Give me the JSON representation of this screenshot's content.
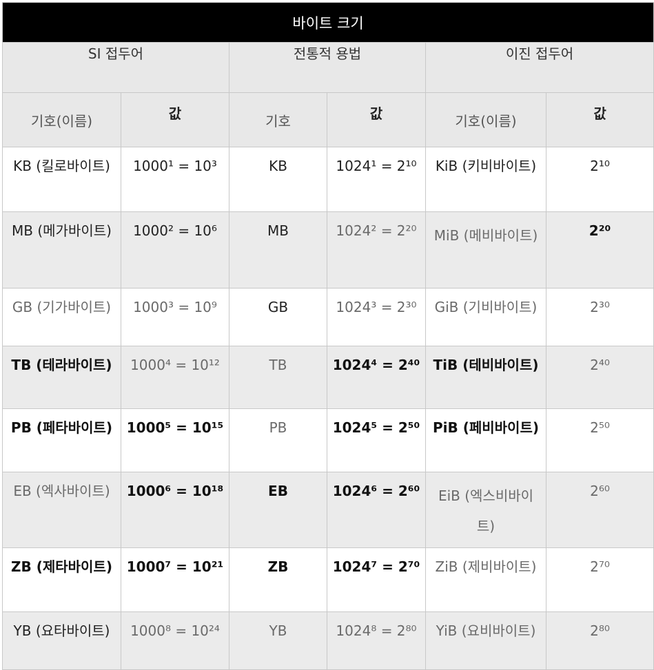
{
  "title": "바이트 크기",
  "groups": [
    "SI 접두어",
    "전통적 용법",
    "이진 접두어"
  ],
  "subheaders": [
    "기호(이름)",
    "값",
    "기호",
    "값",
    "기호(이름)",
    "값"
  ],
  "rows": [
    {
      "si": "KB (킬로바이트)",
      "si_val": "1000¹ = 10³",
      "trad": "KB",
      "trad_val": "1024¹ = 2¹⁰",
      "bin": "KiB (키비바이트)",
      "bin_val": "2¹⁰"
    },
    {
      "si": "MB (메가바이트)",
      "si_val": "1000² = 10⁶",
      "trad": "MB",
      "trad_val": "1024² = 2²⁰",
      "bin": "MiB (메비바이트)",
      "bin_val": "2²⁰"
    },
    {
      "si": "GB (기가바이트)",
      "si_val": "1000³ = 10⁹",
      "trad": "GB",
      "trad_val": "1024³ = 2³⁰",
      "bin": "GiB (기비바이트)",
      "bin_val": "2³⁰"
    },
    {
      "si": "TB (테라바이트)",
      "si_val": "1000⁴ = 10¹²",
      "trad": "TB",
      "trad_val": "1024⁴ = 2⁴⁰",
      "bin": "TiB (테비바이트)",
      "bin_val": "2⁴⁰"
    },
    {
      "si": "PB (페타바이트)",
      "si_val": "1000⁵ = 10¹⁵",
      "trad": "PB",
      "trad_val": "1024⁵ = 2⁵⁰",
      "bin": "PiB (페비바이트)",
      "bin_val": "2⁵⁰"
    },
    {
      "si": "EB (엑사바이트)",
      "si_val": "1000⁶ = 10¹⁸",
      "trad": "EB",
      "trad_val": "1024⁶ = 2⁶⁰",
      "bin": "EiB (엑스비바이트)",
      "bin_val": "2⁶⁰"
    },
    {
      "si": "ZB (제타바이트)",
      "si_val": "1000⁷ = 10²¹",
      "trad": "ZB",
      "trad_val": "1024⁷ = 2⁷⁰",
      "bin": "ZiB (제비바이트)",
      "bin_val": "2⁷⁰"
    },
    {
      "si": "YB (요타바이트)",
      "si_val": "1000⁸ = 10²⁴",
      "trad": "YB",
      "trad_val": "1024⁸ = 2⁸⁰",
      "bin": "YiB (요비바이트)",
      "bin_val": "2⁸⁰"
    }
  ]
}
